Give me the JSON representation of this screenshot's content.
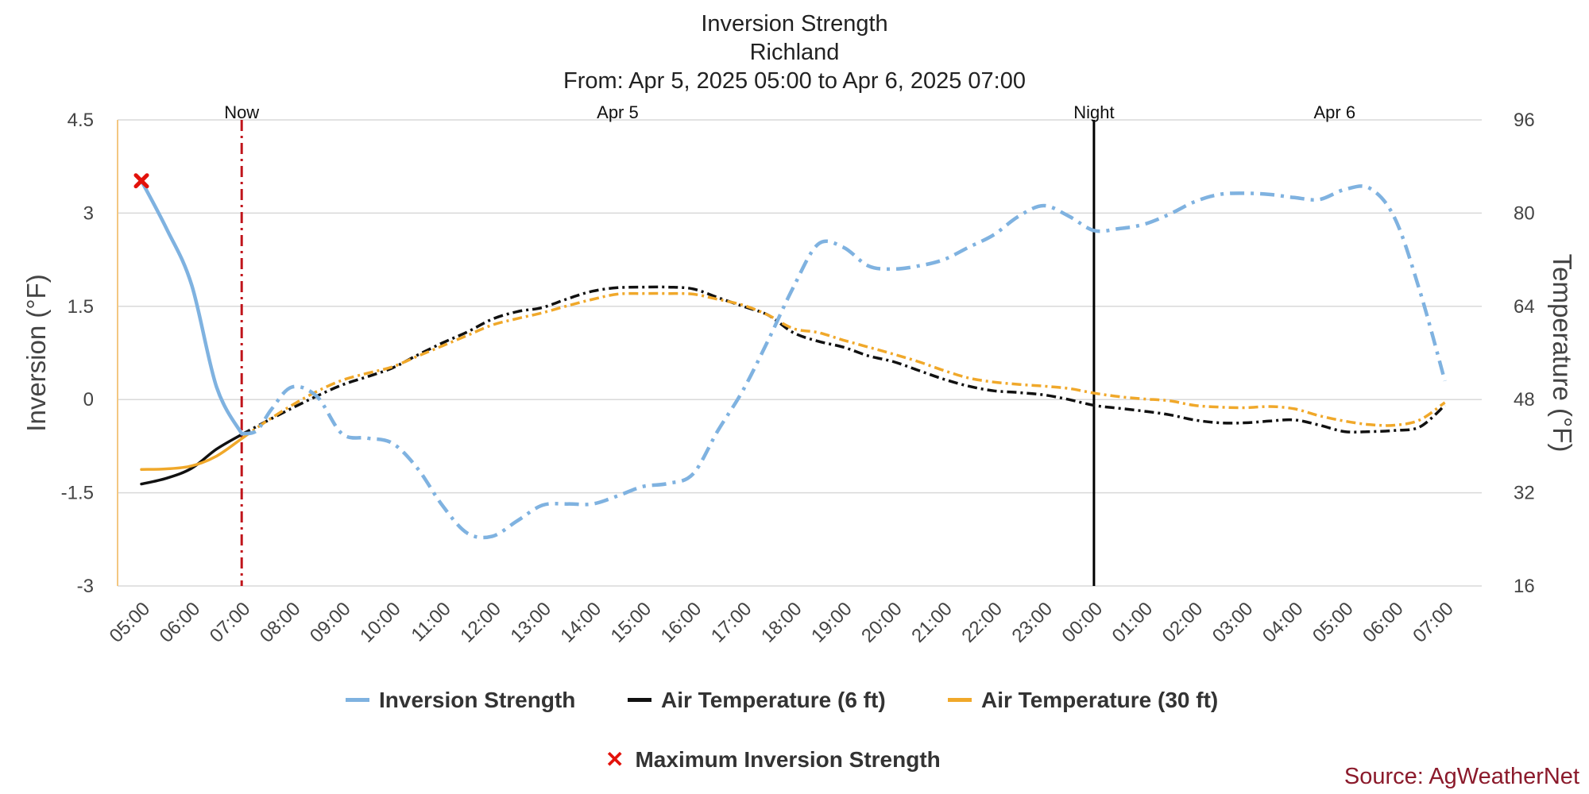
{
  "chart_data": {
    "type": "line",
    "title": "Inversion Strength",
    "subtitle_location": "Richland",
    "subtitle_range": "From: Apr 5, 2025 05:00 to Apr 6, 2025 07:00",
    "ylabel_left": "Inversion (°F)",
    "ylabel_right": "Temperature (°F)",
    "ylim_left": [
      -3,
      4.5
    ],
    "ylim_right": [
      16,
      96
    ],
    "yticks_left": [
      "4.5",
      "3",
      "1.5",
      "0",
      "-1.5",
      "-3"
    ],
    "yticks_right": [
      "96",
      "80",
      "64",
      "48",
      "32",
      "16"
    ],
    "grid": true,
    "x_tick_labels": [
      "05:00",
      "06:00",
      "07:00",
      "08:00",
      "09:00",
      "10:00",
      "11:00",
      "12:00",
      "13:00",
      "14:00",
      "15:00",
      "16:00",
      "17:00",
      "18:00",
      "19:00",
      "20:00",
      "21:00",
      "22:00",
      "23:00",
      "00:00",
      "01:00",
      "02:00",
      "03:00",
      "04:00",
      "05:00",
      "06:00",
      "07:00"
    ],
    "top_markers": [
      {
        "label": "Now",
        "hour_index": 2,
        "style": "red-dashdot"
      },
      {
        "label": "Apr 5",
        "hour_index": 9.5,
        "style": "label-only"
      },
      {
        "label": "Night",
        "hour_index": 19,
        "style": "black-solid"
      },
      {
        "label": "Apr 6",
        "hour_index": 23.8,
        "style": "label-only"
      }
    ],
    "series": [
      {
        "name": "Inversion Strength",
        "axis": "left",
        "color": "#7fb2e0",
        "solid_until_index": 2,
        "x": [
          0,
          0.5,
          1,
          1.5,
          2,
          2.3,
          2.6,
          3,
          3.5,
          4,
          4.5,
          5,
          5.5,
          6,
          6.5,
          7,
          7.5,
          8,
          8.5,
          9,
          9.5,
          10,
          10.5,
          11,
          11.5,
          12,
          12.5,
          13,
          13.5,
          14,
          14.5,
          15,
          15.5,
          16,
          16.5,
          17,
          17.5,
          18,
          18.5,
          19,
          19.5,
          20,
          20.5,
          21,
          21.5,
          22,
          22.5,
          23,
          23.5,
          24,
          24.5,
          25,
          25.5,
          26
        ],
        "values": [
          3.52,
          2.75,
          1.85,
          0.2,
          -0.55,
          -0.5,
          -0.15,
          0.2,
          0.05,
          -0.55,
          -0.62,
          -0.7,
          -1.1,
          -1.7,
          -2.15,
          -2.2,
          -1.95,
          -1.7,
          -1.68,
          -1.68,
          -1.55,
          -1.4,
          -1.35,
          -1.2,
          -0.5,
          0.15,
          0.95,
          1.8,
          2.5,
          2.45,
          2.15,
          2.1,
          2.15,
          2.25,
          2.45,
          2.65,
          2.95,
          3.12,
          2.95,
          2.72,
          2.75,
          2.82,
          2.98,
          3.18,
          3.3,
          3.32,
          3.3,
          3.25,
          3.22,
          3.38,
          3.4,
          2.92,
          1.75,
          0.3
        ]
      },
      {
        "name": "Air Temperature (6 ft)",
        "axis": "right",
        "color": "#111111",
        "solid_until_index": 2,
        "x": [
          0,
          0.5,
          1,
          1.5,
          2,
          2.5,
          3,
          3.5,
          4,
          4.5,
          5,
          5.5,
          6,
          6.5,
          7,
          7.5,
          8,
          8.5,
          9,
          9.5,
          10,
          10.5,
          11,
          11.5,
          12,
          12.5,
          13,
          13.5,
          14,
          14.5,
          15,
          15.5,
          16,
          16.5,
          17,
          17.5,
          18,
          18.5,
          19,
          19.5,
          20,
          20.5,
          21,
          21.5,
          22,
          22.5,
          23,
          23.5,
          24,
          24.5,
          25,
          25.5,
          26
        ],
        "values": [
          33.5,
          34.5,
          36.2,
          39.5,
          42,
          44.3,
          46.5,
          48.6,
          50.5,
          51.9,
          53.4,
          55.6,
          57.7,
          59.6,
          61.8,
          63.1,
          63.8,
          65.3,
          66.6,
          67.2,
          67.3,
          67.3,
          67,
          65.5,
          64,
          62.5,
          59.5,
          58,
          57,
          55.5,
          54.5,
          53,
          51.5,
          50.3,
          49.5,
          49.2,
          48.8,
          48,
          47,
          46.5,
          46,
          45.4,
          44.5,
          44,
          44,
          44.3,
          44.5,
          43.6,
          42.5,
          42.5,
          42.7,
          43.3,
          47
        ]
      },
      {
        "name": "Air Temperature (30 ft)",
        "axis": "right",
        "color": "#f0a82a",
        "solid_until_index": 2,
        "x": [
          0,
          0.5,
          1,
          1.5,
          2,
          2.5,
          3,
          3.5,
          4,
          4.5,
          5,
          5.5,
          6,
          6.5,
          7,
          7.5,
          8,
          8.5,
          9,
          9.5,
          10,
          10.5,
          11,
          11.5,
          12,
          12.5,
          13,
          13.5,
          14,
          14.5,
          15,
          15.5,
          16,
          16.5,
          17,
          17.5,
          18,
          18.5,
          19,
          19.5,
          20,
          20.5,
          21,
          21.5,
          22,
          22.5,
          23,
          23.5,
          24,
          24.5,
          25,
          25.5,
          26
        ],
        "values": [
          36,
          36.1,
          36.6,
          38.3,
          41.3,
          44.3,
          47,
          49.4,
          51.3,
          52.5,
          53.6,
          55.4,
          57.2,
          59,
          60.8,
          61.9,
          62.9,
          64.1,
          65.2,
          66.1,
          66.2,
          66.2,
          66.1,
          65.2,
          64.2,
          62.5,
          60.2,
          59.5,
          58.2,
          57,
          55.8,
          54.5,
          53,
          51.7,
          51,
          50.6,
          50.3,
          49.9,
          49.1,
          48.5,
          48.1,
          47.8,
          47,
          46.7,
          46.6,
          46.8,
          46.4,
          45.2,
          44.3,
          43.7,
          43.6,
          44.5,
          47.5
        ]
      }
    ],
    "markers": [
      {
        "name": "Maximum Inversion Strength",
        "x": 0,
        "value": 3.52,
        "axis": "left",
        "color": "#e3120b",
        "symbol": "x"
      }
    ],
    "legend": {
      "placement": "bottom",
      "entries": [
        "Inversion Strength",
        "Air Temperature (6 ft)",
        "Air Temperature (30 ft)"
      ],
      "marker_entry": "Maximum Inversion Strength"
    },
    "source": "Source: AgWeatherNet"
  }
}
